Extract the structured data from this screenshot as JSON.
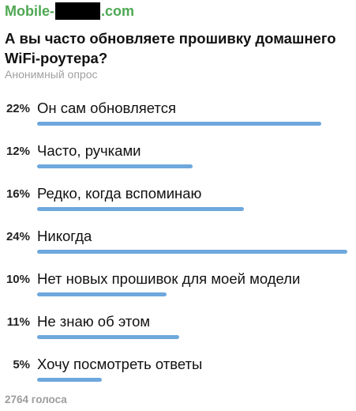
{
  "header": {
    "channel_prefix": "Mobile-",
    "channel_suffix": ".com"
  },
  "poll": {
    "question": "А вы часто обновляете прошивку домашнего WiFi-роутера?",
    "type_label": "Анонимный опрос",
    "bar_color": "#6ea8dc",
    "options": [
      {
        "percent_label": "22%",
        "text": "Он сам обновляется",
        "percent": 22
      },
      {
        "percent_label": "12%",
        "text": "Часто, ручками",
        "percent": 12
      },
      {
        "percent_label": "16%",
        "text": "Редко, когда вспоминаю",
        "percent": 16
      },
      {
        "percent_label": "24%",
        "text": "Никогда",
        "percent": 24
      },
      {
        "percent_label": "10%",
        "text": "Нет новых прошивок для моей модели",
        "percent": 10
      },
      {
        "percent_label": "11%",
        "text": "Не знаю об этом",
        "percent": 11
      },
      {
        "percent_label": "5%",
        "text": "Хочу посмотреть ответы",
        "percent": 5
      }
    ],
    "votes_label": "2764 голоса"
  }
}
